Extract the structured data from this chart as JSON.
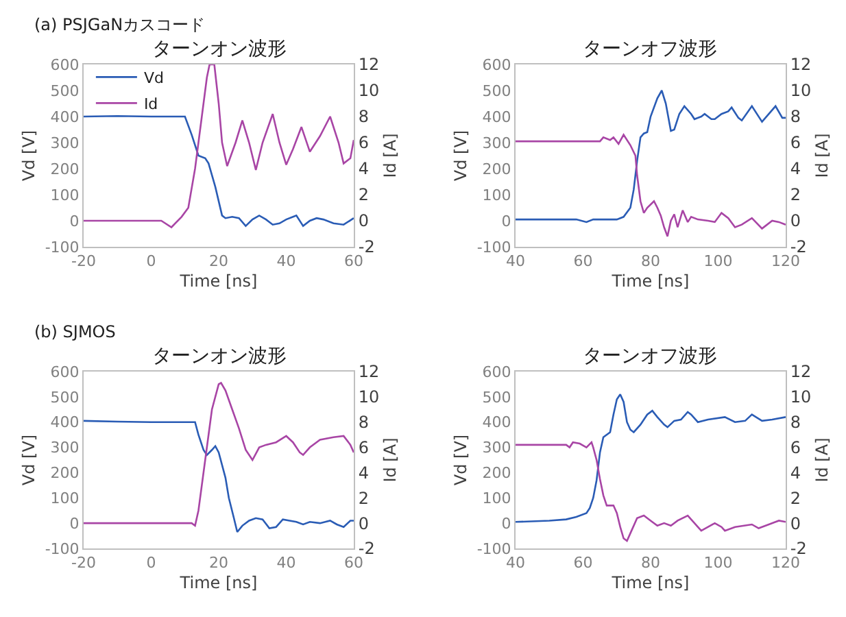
{
  "chart_data": [
    {
      "type": "line",
      "title": "ターンオン波形",
      "annotations": [
        "(a) PSJGaNカスコード"
      ],
      "xlabel": "Time [ns]",
      "ylabel": "Vd [V]",
      "y2label": "Id [A]",
      "legend": "top left",
      "xlim": [
        -20,
        60
      ],
      "xticks": [
        -20,
        0,
        20,
        40,
        60
      ],
      "ylim": [
        -100,
        600
      ],
      "yticks": [
        -100,
        0,
        100,
        200,
        300,
        400,
        500,
        600
      ],
      "y2lim": [
        -2,
        12
      ],
      "y2ticks": [
        -2,
        0,
        2,
        4,
        6,
        8,
        10,
        12
      ],
      "series": [
        {
          "name": "Vd",
          "color": "#2a5cb5",
          "x": [
            -20,
            -10,
            0,
            10,
            12,
            14,
            16,
            17,
            19,
            21,
            22,
            24,
            26,
            28,
            30,
            32,
            34,
            36,
            38,
            40,
            42,
            43,
            45,
            47,
            49,
            51,
            54,
            57,
            60
          ],
          "values": [
            400,
            402,
            400,
            400,
            330,
            250,
            240,
            220,
            130,
            20,
            10,
            15,
            10,
            -20,
            5,
            20,
            5,
            -15,
            -10,
            5,
            15,
            20,
            -20,
            0,
            10,
            5,
            -10,
            -15,
            10
          ]
        },
        {
          "name": "Id",
          "color": "#a845a5",
          "axis": "y2",
          "x": [
            -20,
            -10,
            0,
            3,
            6,
            9,
            11,
            13,
            15,
            16.5,
            17.3,
            18.7,
            20,
            21,
            22.5,
            25,
            27,
            29,
            31,
            33,
            36,
            38,
            40,
            42,
            44.5,
            47,
            50,
            53,
            55.5,
            57,
            59,
            60
          ],
          "values": [
            0,
            0,
            0,
            0,
            -0.5,
            0.3,
            1,
            4,
            8,
            11,
            12,
            12,
            9,
            6,
            4.2,
            6,
            7.7,
            6,
            3.9,
            6,
            8.2,
            6,
            4.3,
            5.5,
            7.2,
            5.3,
            6.5,
            8,
            6,
            4.4,
            4.8,
            6.2
          ]
        }
      ]
    },
    {
      "type": "line",
      "title": "ターンオフ波形",
      "xlabel": "Time [ns]",
      "ylabel": "Vd [V]",
      "y2label": "Id [A]",
      "xlim": [
        40,
        120
      ],
      "xticks": [
        40,
        60,
        80,
        100,
        120
      ],
      "ylim": [
        -100,
        600
      ],
      "yticks": [
        -100,
        0,
        100,
        200,
        300,
        400,
        500,
        600
      ],
      "y2lim": [
        -2,
        12
      ],
      "y2ticks": [
        -2,
        0,
        2,
        4,
        6,
        8,
        10,
        12
      ],
      "series": [
        {
          "color": "#2a5cb5",
          "x": [
            40,
            50,
            58,
            61,
            63,
            70,
            72,
            74,
            75,
            76,
            77,
            78,
            79,
            80,
            82,
            83.3,
            84.5,
            86,
            87,
            88.5,
            90,
            92,
            93,
            95,
            96,
            98,
            99,
            101,
            103,
            104,
            106,
            107,
            110,
            113,
            117,
            119,
            120
          ],
          "values": [
            5,
            5,
            5,
            -5,
            5,
            5,
            15,
            50,
            120,
            230,
            320,
            335,
            340,
            400,
            470,
            500,
            450,
            345,
            350,
            410,
            440,
            410,
            390,
            400,
            410,
            390,
            390,
            410,
            420,
            435,
            395,
            385,
            440,
            380,
            440,
            395,
            395
          ]
        },
        {
          "color": "#a845a5",
          "axis": "y2",
          "x": [
            40,
            50,
            60,
            65,
            66,
            68,
            69,
            70.5,
            72,
            74,
            75.5,
            76,
            77,
            78,
            79,
            81,
            82,
            83,
            84,
            85,
            86,
            87,
            88,
            89.5,
            91,
            92,
            94,
            97,
            99,
            101,
            103,
            105,
            107,
            110,
            113,
            116,
            118,
            120
          ],
          "values": [
            6.1,
            6.1,
            6.1,
            6.1,
            6.4,
            6.2,
            6.4,
            5.9,
            6.6,
            5.8,
            5,
            3.5,
            1.5,
            0.6,
            1,
            1.5,
            1,
            0.4,
            -0.5,
            -1.2,
            0,
            0.5,
            -0.5,
            0.8,
            -0.1,
            0.3,
            0.1,
            0,
            -0.1,
            0.6,
            0.2,
            -0.5,
            -0.3,
            0.2,
            -0.6,
            0,
            -0.1,
            -0.3
          ]
        }
      ]
    },
    {
      "type": "line",
      "title": "ターンオン波形",
      "annotations": [
        "(b) SJMOS"
      ],
      "xlabel": "Time [ns]",
      "ylabel": "Vd [V]",
      "y2label": "Id [A]",
      "xlim": [
        -20,
        60
      ],
      "xticks": [
        -20,
        0,
        20,
        40,
        60
      ],
      "ylim": [
        -100,
        600
      ],
      "yticks": [
        -100,
        0,
        100,
        200,
        300,
        400,
        500,
        600
      ],
      "y2lim": [
        -2,
        12
      ],
      "y2ticks": [
        -2,
        0,
        2,
        4,
        6,
        8,
        10,
        12
      ],
      "series": [
        {
          "color": "#2a5cb5",
          "x": [
            -20,
            -10,
            0,
            10,
            13,
            14,
            15.5,
            16.5,
            18,
            19,
            20,
            22,
            23,
            24.5,
            25.5,
            27,
            29,
            31,
            33,
            35,
            37,
            39,
            41,
            43,
            45,
            47,
            50,
            53,
            55,
            57,
            59,
            60
          ],
          "values": [
            405,
            402,
            400,
            400,
            400,
            350,
            290,
            270,
            290,
            305,
            280,
            180,
            100,
            20,
            -35,
            -10,
            10,
            20,
            15,
            -20,
            -15,
            15,
            10,
            5,
            -5,
            5,
            0,
            10,
            -5,
            -15,
            10,
            10
          ]
        },
        {
          "color": "#a845a5",
          "axis": "y2",
          "x": [
            -20,
            -10,
            0,
            12,
            13,
            14,
            16,
            18,
            20,
            20.7,
            22,
            24,
            26,
            28,
            30,
            32,
            34,
            37,
            40,
            42,
            44,
            45,
            47,
            50,
            54,
            57,
            59,
            60
          ],
          "values": [
            0,
            0,
            0,
            0,
            -0.2,
            1,
            5,
            9,
            11,
            11.1,
            10.5,
            9,
            7.5,
            5.8,
            5,
            6,
            6.2,
            6.4,
            6.9,
            6.4,
            5.6,
            5.4,
            6,
            6.6,
            6.8,
            6.9,
            6.2,
            5.6
          ]
        }
      ]
    },
    {
      "type": "line",
      "title": "ターンオフ波形",
      "xlabel": "Time [ns]",
      "ylabel": "Vd [V]",
      "y2label": "Id [A]",
      "xlim": [
        40,
        120
      ],
      "xticks": [
        40,
        60,
        80,
        100,
        120
      ],
      "ylim": [
        -100,
        600
      ],
      "yticks": [
        -100,
        0,
        100,
        200,
        300,
        400,
        500,
        600
      ],
      "y2lim": [
        -2,
        12
      ],
      "y2ticks": [
        -2,
        0,
        2,
        4,
        6,
        8,
        10,
        12
      ],
      "series": [
        {
          "color": "#2a5cb5",
          "x": [
            40,
            50,
            55,
            58,
            61,
            62,
            63,
            64,
            65,
            66,
            68,
            69,
            70,
            71,
            72,
            73,
            74,
            75,
            77,
            79,
            80.5,
            82,
            84,
            85,
            87,
            89,
            91,
            92,
            94,
            97,
            102,
            105,
            108,
            110,
            113,
            116,
            120
          ],
          "values": [
            5,
            10,
            15,
            25,
            40,
            60,
            100,
            170,
            280,
            340,
            360,
            430,
            490,
            510,
            480,
            400,
            370,
            360,
            390,
            430,
            445,
            420,
            390,
            380,
            405,
            410,
            440,
            430,
            400,
            410,
            420,
            400,
            405,
            430,
            405,
            410,
            420
          ]
        },
        {
          "color": "#a845a5",
          "axis": "y2",
          "x": [
            40,
            50,
            55,
            56,
            57,
            59,
            61,
            62.5,
            63,
            64,
            65,
            66,
            67,
            69,
            70,
            71,
            72,
            73,
            74,
            76,
            78,
            80,
            82,
            84,
            86,
            88,
            91,
            93,
            95,
            97,
            99,
            101,
            102,
            105,
            110,
            112,
            115,
            118,
            120
          ],
          "values": [
            6.2,
            6.2,
            6.2,
            6,
            6.4,
            6.3,
            6,
            6.4,
            6,
            5,
            3.5,
            2.2,
            1.4,
            1.4,
            0.8,
            -0.3,
            -1.2,
            -1.4,
            -0.8,
            0.4,
            0.6,
            0.2,
            -0.2,
            0,
            -0.2,
            0.2,
            0.6,
            0,
            -0.6,
            -0.3,
            0,
            -0.3,
            -0.6,
            -0.3,
            -0.1,
            -0.4,
            -0.1,
            0.2,
            0.1
          ]
        }
      ]
    }
  ]
}
